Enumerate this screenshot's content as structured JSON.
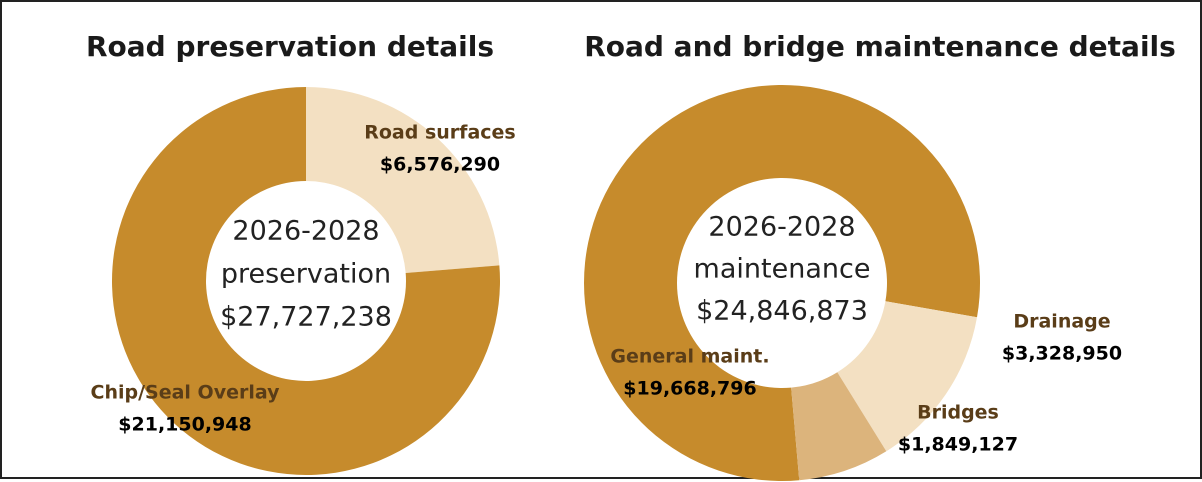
{
  "chart_data": [
    {
      "type": "pie",
      "title": "Road preservation details",
      "categories": [
        "Road surfaces",
        "Chip/Seal Overlay"
      ],
      "values": [
        6576290,
        21150948
      ],
      "value_labels": [
        "$6,576,290",
        "$21,150,948"
      ],
      "colors": [
        "#f3e0c2",
        "#c68b2c"
      ],
      "center_lines": [
        "2026-2028",
        "preservation",
        "$27,727,238"
      ]
    },
    {
      "type": "pie",
      "title": "Road and bridge maintenance details",
      "categories": [
        "General maint.",
        "Drainage",
        "Bridges"
      ],
      "values": [
        19668796,
        3328950,
        1849127
      ],
      "value_labels": [
        "$19,668,796",
        "$3,328,950",
        "$1,849,127"
      ],
      "colors": [
        "#c68b2c",
        "#f3e0c2",
        "#dcb47c"
      ],
      "center_lines": [
        "2026-2028",
        "maintenance",
        "$24,846,873"
      ]
    }
  ]
}
